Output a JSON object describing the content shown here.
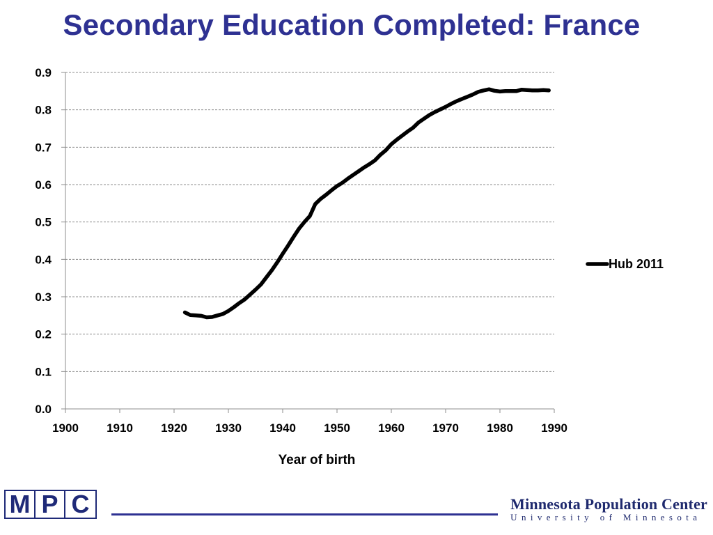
{
  "slide": {
    "title": "Secondary Education Completed: France"
  },
  "chart_data": {
    "type": "line",
    "xlabel": "Year of birth",
    "ylabel": "",
    "xlim": [
      1900,
      1990
    ],
    "ylim": [
      0.0,
      0.9
    ],
    "x_ticks": [
      "1900",
      "1910",
      "1920",
      "1930",
      "1940",
      "1950",
      "1960",
      "1970",
      "1980",
      "1990"
    ],
    "y_ticks": [
      "0.0",
      "0.1",
      "0.2",
      "0.3",
      "0.4",
      "0.5",
      "0.6",
      "0.7",
      "0.8",
      "0.9"
    ],
    "grid": "horizontal dashed",
    "legend_position": "right",
    "series": [
      {
        "name": "Hub 2011",
        "color": "#000000",
        "x": [
          1922,
          1923,
          1924,
          1925,
          1926,
          1927,
          1928,
          1929,
          1930,
          1931,
          1932,
          1933,
          1934,
          1935,
          1936,
          1937,
          1938,
          1939,
          1940,
          1941,
          1942,
          1943,
          1944,
          1945,
          1946,
          1947,
          1948,
          1949,
          1950,
          1951,
          1952,
          1953,
          1954,
          1955,
          1956,
          1957,
          1958,
          1959,
          1960,
          1961,
          1962,
          1963,
          1964,
          1965,
          1966,
          1967,
          1968,
          1969,
          1970,
          1971,
          1972,
          1973,
          1974,
          1975,
          1976,
          1977,
          1978,
          1979,
          1980,
          1981,
          1982,
          1983,
          1984,
          1985,
          1986,
          1987,
          1988,
          1989
        ],
        "values": [
          0.258,
          0.251,
          0.25,
          0.249,
          0.245,
          0.246,
          0.25,
          0.254,
          0.262,
          0.272,
          0.283,
          0.293,
          0.306,
          0.319,
          0.333,
          0.352,
          0.371,
          0.392,
          0.415,
          0.437,
          0.46,
          0.482,
          0.5,
          0.516,
          0.548,
          0.562,
          0.573,
          0.585,
          0.596,
          0.605,
          0.616,
          0.626,
          0.636,
          0.646,
          0.655,
          0.665,
          0.68,
          0.692,
          0.708,
          0.72,
          0.731,
          0.742,
          0.752,
          0.766,
          0.776,
          0.786,
          0.794,
          0.801,
          0.808,
          0.816,
          0.823,
          0.829,
          0.835,
          0.841,
          0.848,
          0.852,
          0.855,
          0.851,
          0.849,
          0.85,
          0.85,
          0.85,
          0.854,
          0.853,
          0.852,
          0.852,
          0.853,
          0.852
        ]
      }
    ]
  },
  "footer": {
    "logo_letters": [
      "M",
      "P",
      "C"
    ],
    "org_name_line1": "Minnesota Population Center",
    "org_name_line2": "University of Minnesota",
    "accent_color": "#2e3192"
  }
}
